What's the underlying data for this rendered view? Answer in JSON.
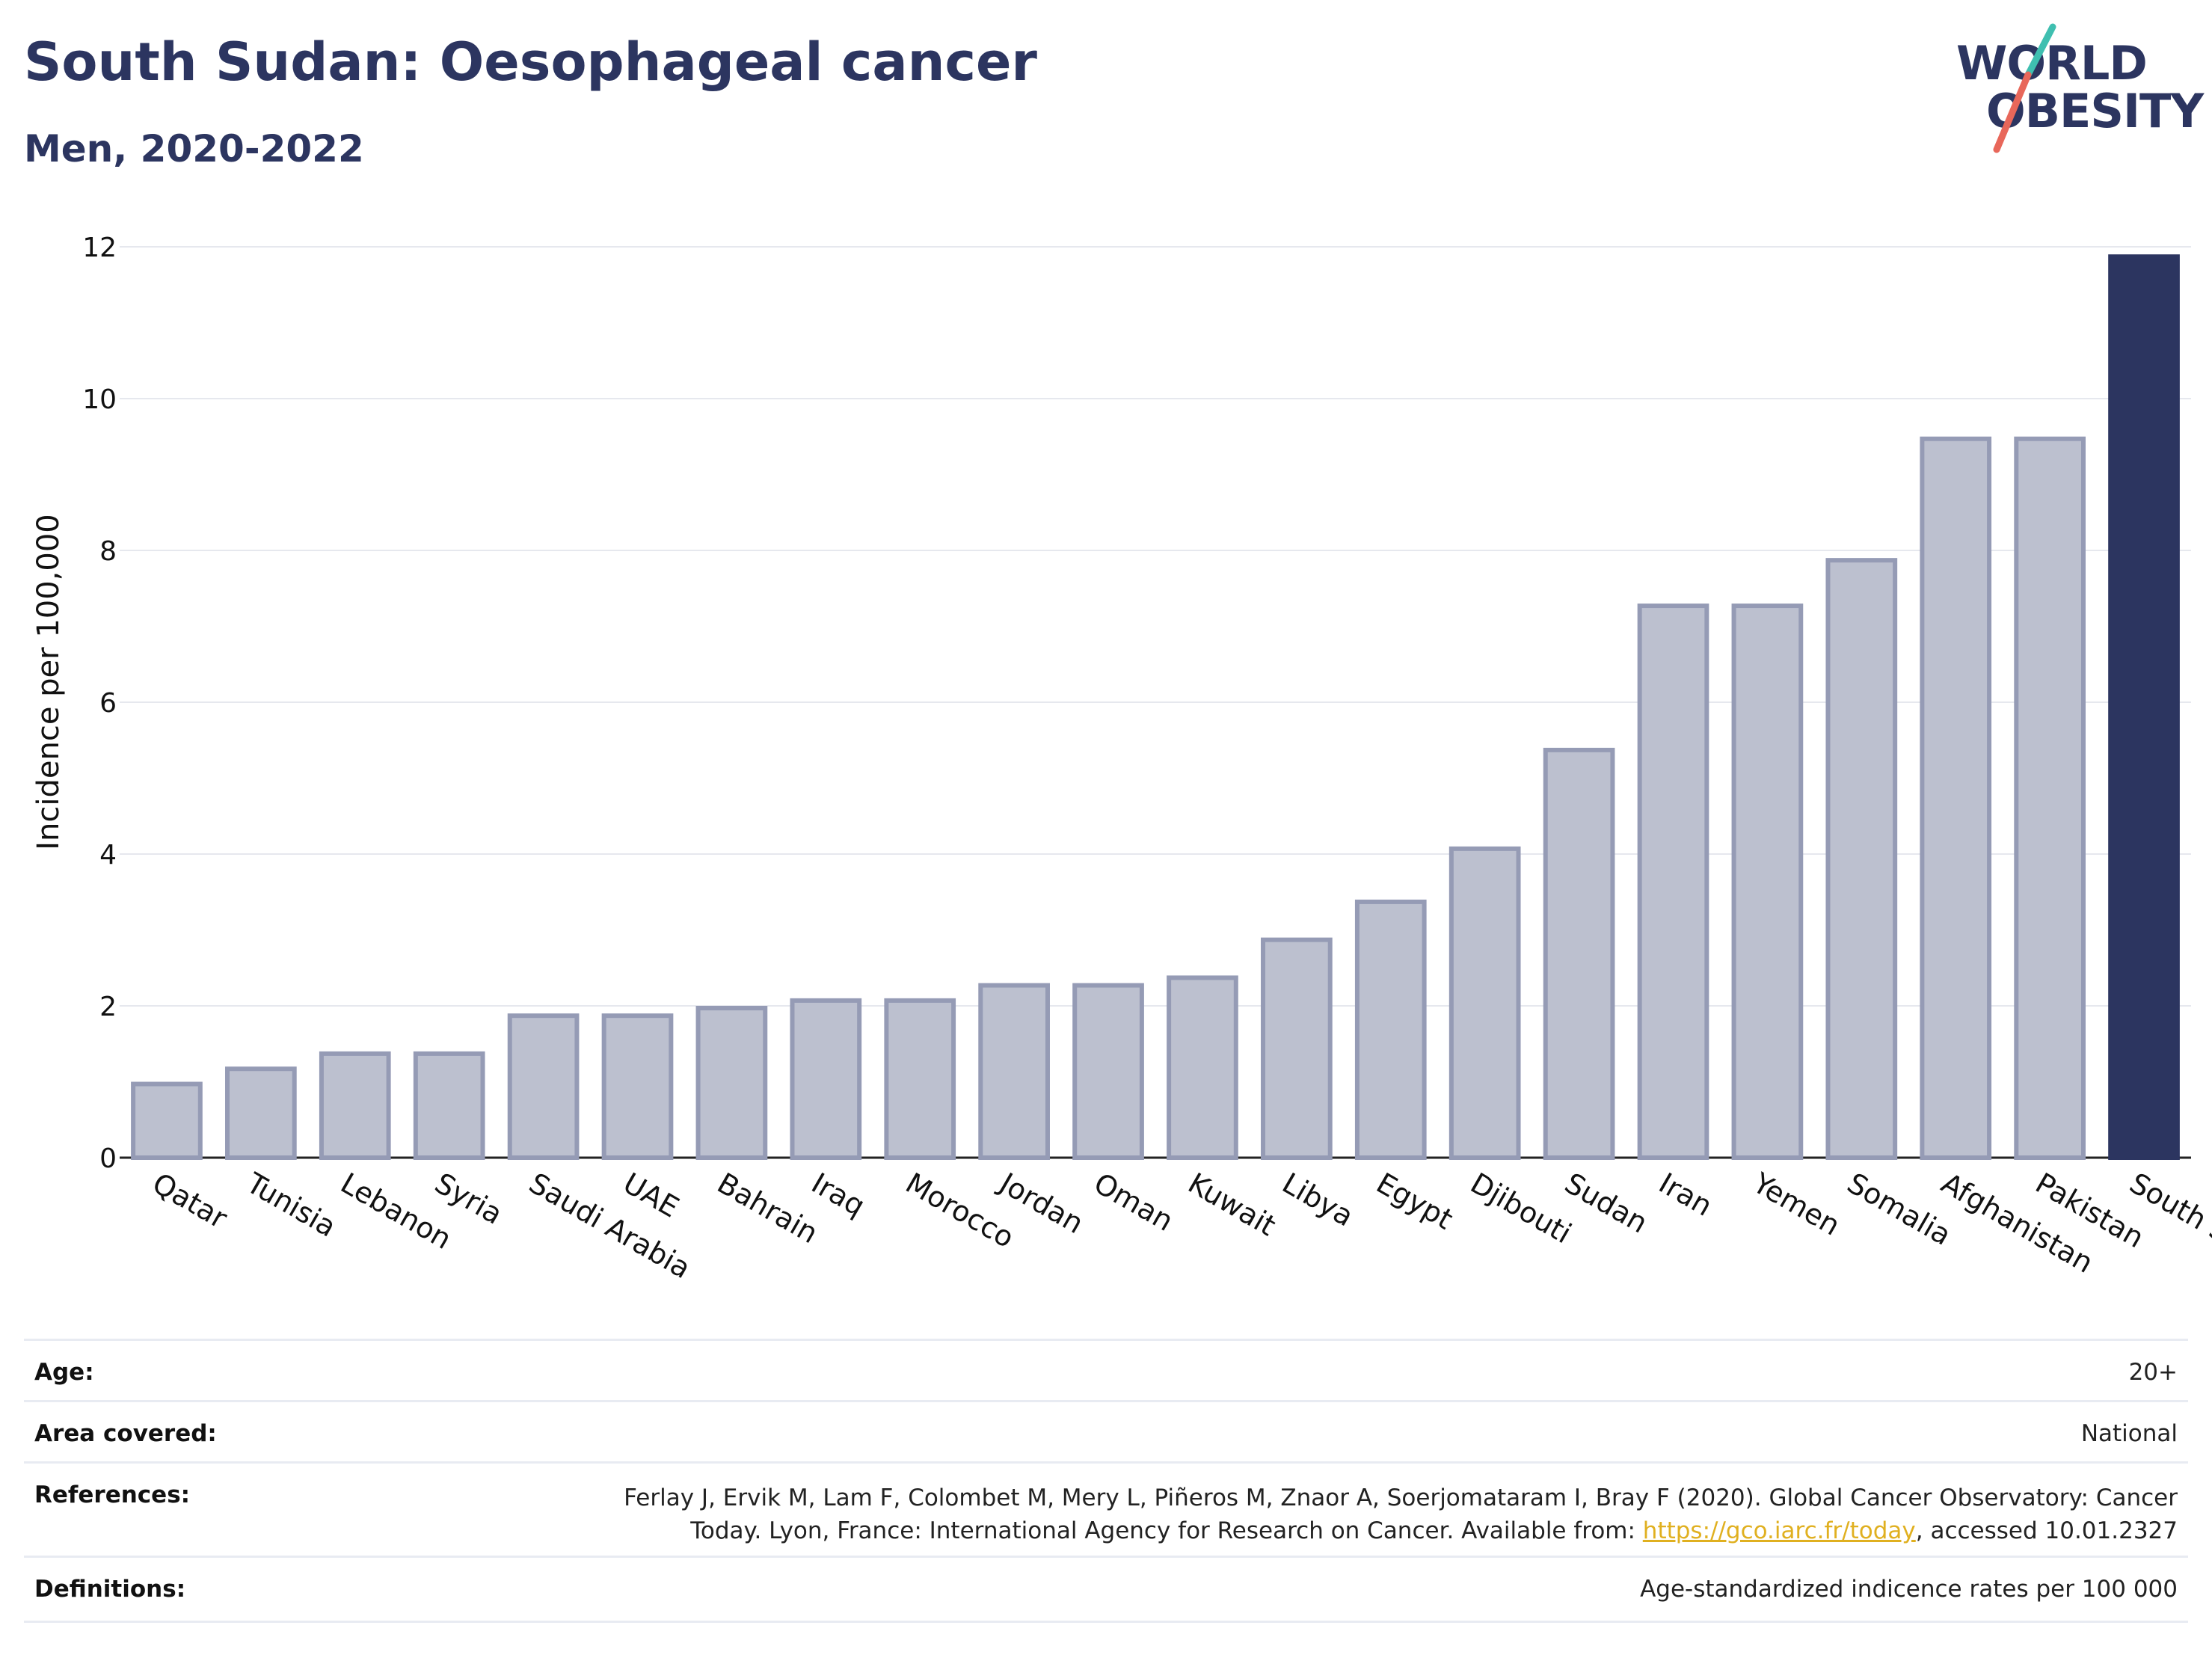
{
  "header": {
    "title": "South Sudan: Oesophageal cancer",
    "subtitle": "Men, 2020-2022"
  },
  "logo": {
    "line1": "WORLD",
    "line2": "OBESITY",
    "accent_teal": "#3fbfb0",
    "accent_coral": "#e8675a"
  },
  "colors": {
    "bar": "#bcc0cf",
    "bar_border": "#959bb5",
    "highlight": "#2c3560",
    "grid": "#e6e8ee"
  },
  "chart_data": {
    "type": "bar",
    "ylabel": "Incidence per 100,000",
    "ylim": [
      0,
      12
    ],
    "yticks": [
      0,
      2,
      4,
      6,
      8,
      10,
      12
    ],
    "grid": true,
    "highlight_category": "South Sudan",
    "categories": [
      "Qatar",
      "Tunisia",
      "Lebanon",
      "Syria",
      "Saudi Arabia",
      "UAE",
      "Bahrain",
      "Iraq",
      "Morocco",
      "Jordan",
      "Oman",
      "Kuwait",
      "Libya",
      "Egypt",
      "Djibouti",
      "Sudan",
      "Iran",
      "Yemen",
      "Somalia",
      "Afghanistan",
      "Pakistan",
      "South Sudan"
    ],
    "values": [
      1.0,
      1.2,
      1.4,
      1.4,
      1.9,
      1.9,
      2.0,
      2.1,
      2.1,
      2.3,
      2.3,
      2.4,
      2.9,
      3.4,
      4.1,
      5.4,
      7.3,
      7.3,
      7.9,
      9.5,
      9.5,
      11.9
    ]
  },
  "meta": {
    "age_label": "Age:",
    "age_value": "20+",
    "area_label": "Area covered:",
    "area_value": "National",
    "references_label": "References:",
    "references_line1": "Ferlay J, Ervik M, Lam F, Colombet M, Mery L, Piñeros M, Znaor A, Soerjomataram I, Bray F (2020). Global Cancer Observatory: Cancer",
    "references_line2_pre": "Today. Lyon, France: International Agency for Research on Cancer. Available from: ",
    "references_link": "https://gco.iarc.fr/today",
    "references_line2_post": ", accessed 10.01.2327",
    "definitions_label": "Definitions:",
    "definitions_value": "Age-standardized indicence rates per 100 000"
  }
}
